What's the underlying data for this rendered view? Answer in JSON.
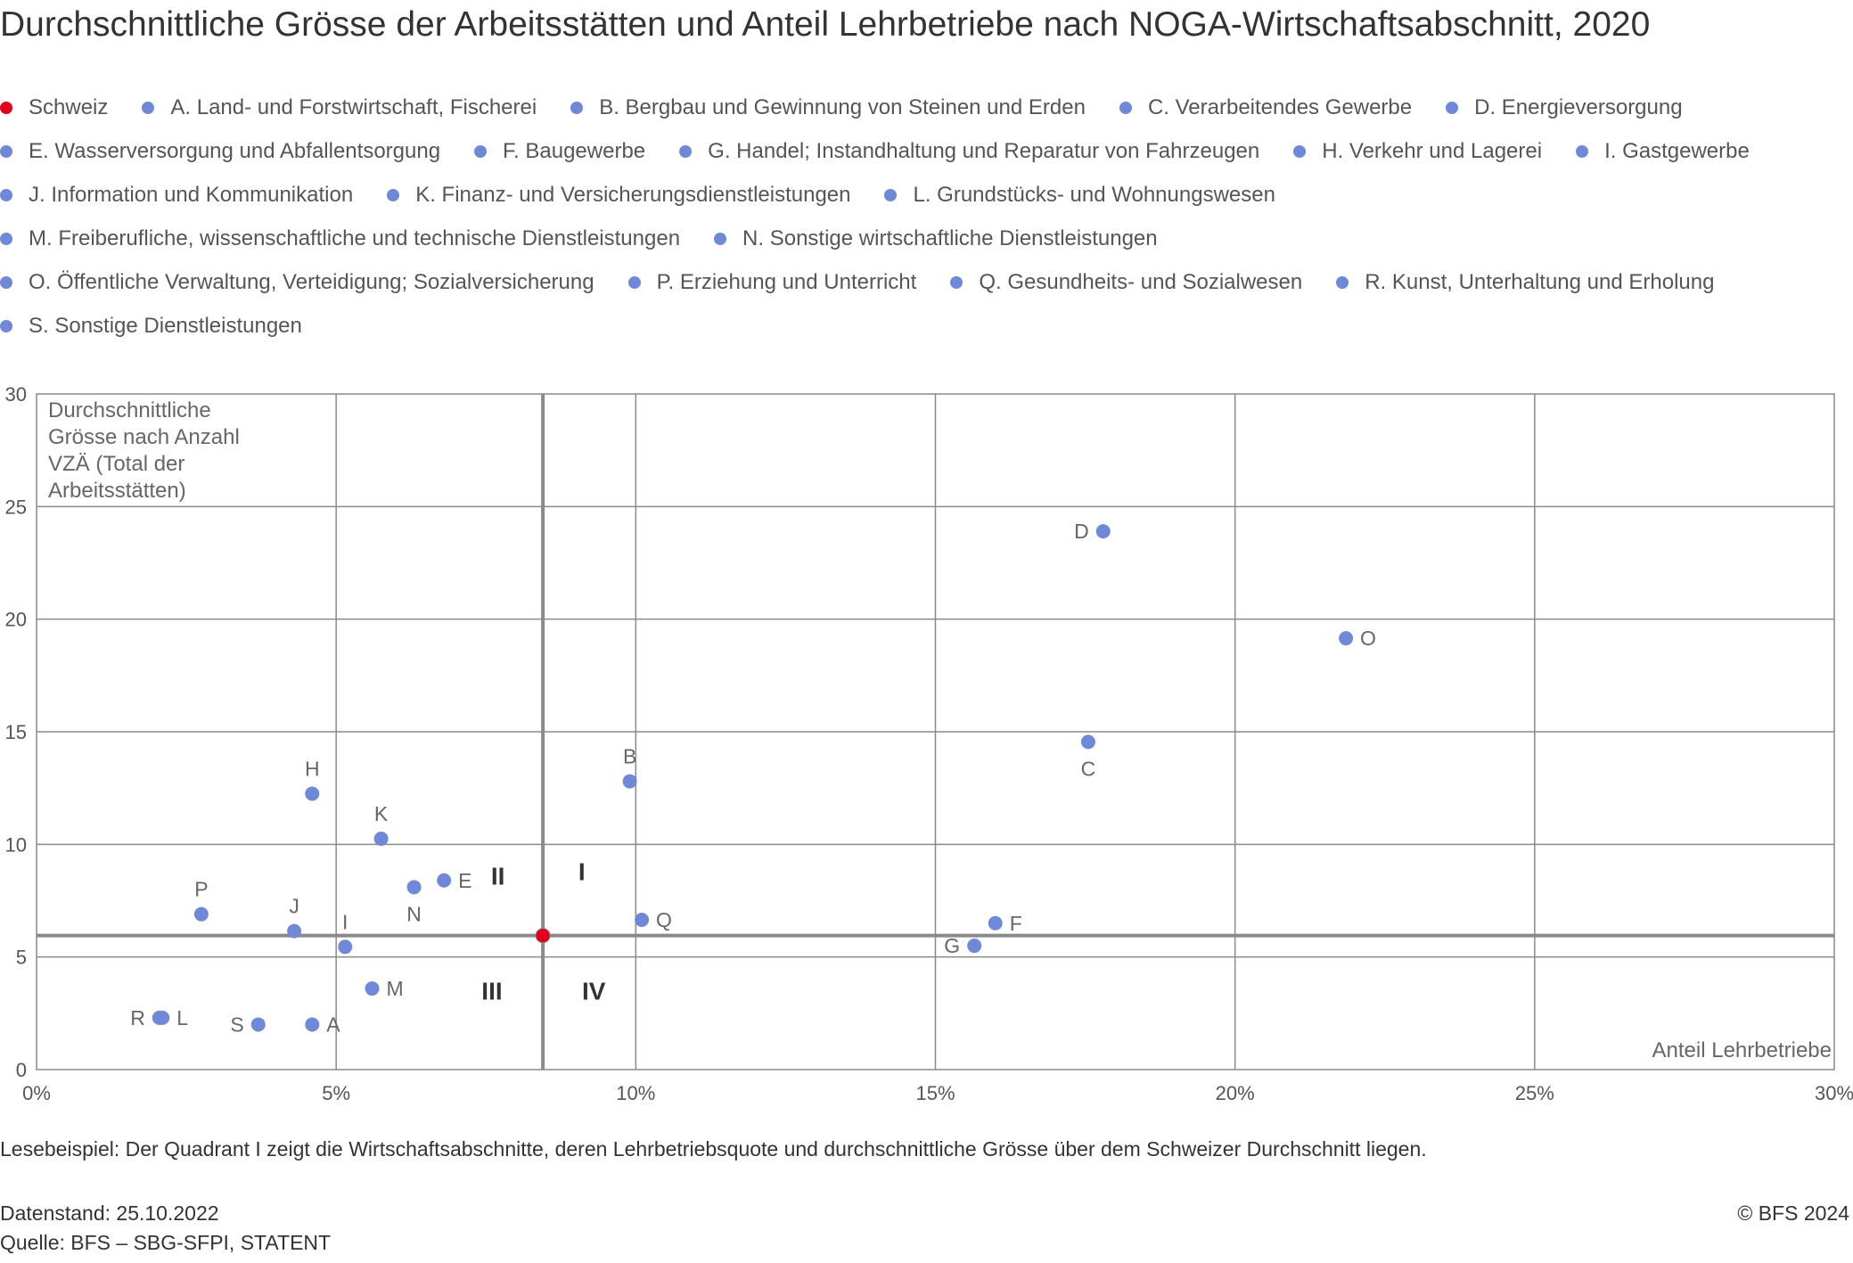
{
  "title": "Durchschnittliche Grösse der Arbeitsstätten und Anteil Lehrbetriebe nach NOGA-Wirtschaftsabschnitt, 2020",
  "legend": [
    [
      {
        "label": "Schweiz",
        "color": "#e2001a"
      },
      {
        "label": "A. Land- und Forstwirtschaft, Fischerei",
        "color": "#7088d8"
      },
      {
        "label": "B. Bergbau und Gewinnung von Steinen und Erden",
        "color": "#7088d8"
      },
      {
        "label": "C. Verarbeitendes Gewerbe",
        "color": "#7088d8"
      },
      {
        "label": "D. Energieversorgung",
        "color": "#7088d8"
      }
    ],
    [
      {
        "label": "E. Wasserversorgung und Abfallentsorgung",
        "color": "#7088d8"
      },
      {
        "label": "F. Baugewerbe",
        "color": "#7088d8"
      },
      {
        "label": "G. Handel; Instandhaltung und Reparatur von Fahrzeugen",
        "color": "#7088d8"
      },
      {
        "label": "H. Verkehr und Lagerei",
        "color": "#7088d8"
      },
      {
        "label": "I. Gastgewerbe",
        "color": "#7088d8"
      }
    ],
    [
      {
        "label": "J. Information und Kommunikation",
        "color": "#7088d8"
      },
      {
        "label": "K. Finanz- und Versicherungsdienstleistungen",
        "color": "#7088d8"
      },
      {
        "label": "L. Grundstücks- und Wohnungswesen",
        "color": "#7088d8"
      }
    ],
    [
      {
        "label": "M. Freiberufliche, wissenschaftliche und technische Dienstleistungen",
        "color": "#7088d8"
      },
      {
        "label": "N. Sonstige wirtschaftliche Dienstleistungen",
        "color": "#7088d8"
      }
    ],
    [
      {
        "label": "O. Öffentliche Verwaltung, Verteidigung; Sozialversicherung",
        "color": "#7088d8"
      },
      {
        "label": "P. Erziehung und Unterricht",
        "color": "#7088d8"
      },
      {
        "label": "Q. Gesundheits- und Sozialwesen",
        "color": "#7088d8"
      },
      {
        "label": "R. Kunst, Unterhaltung und Erholung",
        "color": "#7088d8"
      }
    ],
    [
      {
        "label": "S. Sonstige Dienstleistungen",
        "color": "#7088d8"
      }
    ]
  ],
  "chart_data": {
    "type": "scatter",
    "xlabel": "Anteil Lehrbetriebe",
    "ylabel": [
      "Durchschnittliche",
      "Grösse nach Anzahl",
      "VZÄ (Total der",
      "Arbeitsstätten)"
    ],
    "xlim": [
      0,
      30
    ],
    "ylim": [
      0,
      30
    ],
    "x_ticks": [
      0,
      5,
      10,
      15,
      20,
      25,
      30
    ],
    "x_tick_labels": [
      "0%",
      "5%",
      "10%",
      "15%",
      "20%",
      "25%",
      "30%"
    ],
    "y_ticks": [
      0,
      5,
      10,
      15,
      20,
      25,
      30
    ],
    "y_tick_labels": [
      "0",
      "5",
      "10",
      "15",
      "20",
      "25",
      "30"
    ],
    "grid": true,
    "reference": {
      "x": 8.45,
      "y": 5.95
    },
    "quadrants": [
      {
        "label": "I",
        "x": 9.1,
        "y": 8.8
      },
      {
        "label": "II",
        "x": 7.7,
        "y": 8.6
      },
      {
        "label": "III",
        "x": 7.6,
        "y": 3.5
      },
      {
        "label": "IV",
        "x": 9.3,
        "y": 3.5
      }
    ],
    "point_colors": {
      "main": "#7088d8",
      "reference": "#e2001a"
    },
    "points": [
      {
        "label": "Schweiz",
        "x": 8.45,
        "y": 5.95,
        "reference": true,
        "show_label": false
      },
      {
        "label": "A",
        "x": 4.6,
        "y": 2.0,
        "pos": "right"
      },
      {
        "label": "B",
        "x": 9.9,
        "y": 12.8,
        "pos": "top"
      },
      {
        "label": "C",
        "x": 17.55,
        "y": 14.55,
        "pos": "bottom"
      },
      {
        "label": "D",
        "x": 17.8,
        "y": 23.9,
        "pos": "left"
      },
      {
        "label": "E",
        "x": 6.8,
        "y": 8.4,
        "pos": "right"
      },
      {
        "label": "F",
        "x": 16.0,
        "y": 6.5,
        "pos": "right"
      },
      {
        "label": "G",
        "x": 15.65,
        "y": 5.5,
        "pos": "left"
      },
      {
        "label": "H",
        "x": 4.6,
        "y": 12.25,
        "pos": "top"
      },
      {
        "label": "I",
        "x": 5.15,
        "y": 5.45,
        "pos": "top"
      },
      {
        "label": "J",
        "x": 4.3,
        "y": 6.15,
        "pos": "top"
      },
      {
        "label": "K",
        "x": 5.75,
        "y": 10.25,
        "pos": "top"
      },
      {
        "label": "L",
        "x": 2.1,
        "y": 2.3,
        "pos": "right"
      },
      {
        "label": "M",
        "x": 5.6,
        "y": 3.6,
        "pos": "right"
      },
      {
        "label": "N",
        "x": 6.3,
        "y": 8.1,
        "pos": "bottom"
      },
      {
        "label": "O",
        "x": 21.85,
        "y": 19.15,
        "pos": "right"
      },
      {
        "label": "P",
        "x": 2.75,
        "y": 6.9,
        "pos": "top"
      },
      {
        "label": "Q",
        "x": 10.1,
        "y": 6.65,
        "pos": "right"
      },
      {
        "label": "R",
        "x": 2.05,
        "y": 2.3,
        "pos": "left"
      },
      {
        "label": "S",
        "x": 3.7,
        "y": 2.0,
        "pos": "left"
      }
    ]
  },
  "note": "Lesebeispiel: Der Quadrant I zeigt die Wirtschaftsabschnitte, deren Lehrbetriebsquote und durchschnittliche Grösse über dem Schweizer Durchschnitt liegen.",
  "footer": {
    "datenstand": "Datenstand: 25.10.2022",
    "quelle": "Quelle: BFS – SBG-SFPI, STATENT",
    "copyright": "© BFS 2024"
  }
}
